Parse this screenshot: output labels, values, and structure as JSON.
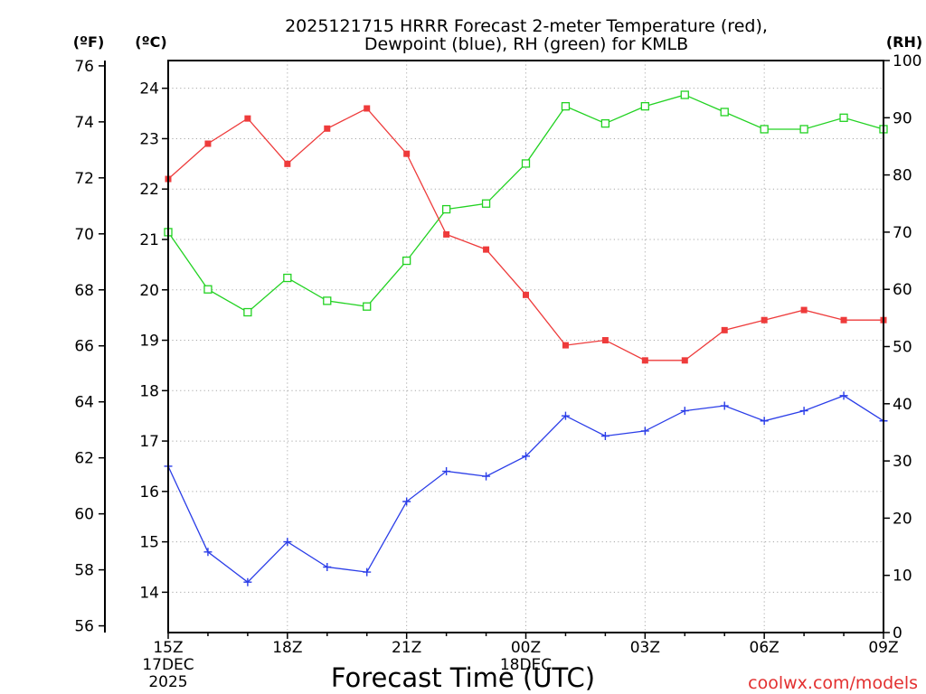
{
  "chart_data": {
    "type": "line",
    "title": [
      "2025121715 HRRR Forecast 2-meter Temperature (red),",
      "Dewpoint (blue), RH (green) for KMLB"
    ],
    "xlabel": "Forecast Time (UTC)",
    "x_hours_utc": [
      15,
      16,
      17,
      18,
      19,
      20,
      21,
      22,
      23,
      0,
      1,
      2,
      3,
      4,
      5,
      6,
      7,
      8,
      9
    ],
    "x_ticks": [
      {
        "label": "15Z",
        "date": "17DEC",
        "year": "2025"
      },
      {
        "label": "18Z"
      },
      {
        "label": "21Z"
      },
      {
        "label": "00Z",
        "date": "18DEC"
      },
      {
        "label": "03Z"
      },
      {
        "label": "06Z"
      },
      {
        "label": "09Z"
      }
    ],
    "y_axes": {
      "fahrenheit": {
        "label": "(ºF)",
        "ticks": [
          56,
          58,
          60,
          62,
          64,
          66,
          68,
          70,
          72,
          74,
          76
        ],
        "range": [
          55.76,
          76.19
        ]
      },
      "celsius": {
        "label": "(ºC)",
        "ticks": [
          14,
          15,
          16,
          17,
          18,
          19,
          20,
          21,
          22,
          23,
          24
        ],
        "range": [
          13.2,
          24.55
        ]
      },
      "rh": {
        "label": "(RH)",
        "ticks": [
          0,
          10,
          20,
          30,
          40,
          50,
          60,
          70,
          80,
          90,
          100
        ],
        "range": [
          0,
          100
        ]
      }
    },
    "grid": true,
    "temperature_c": [
      22.2,
      22.9,
      23.4,
      22.5,
      23.2,
      23.6,
      22.7,
      21.1,
      20.8,
      19.9,
      18.9,
      19.0,
      18.6,
      18.6,
      19.2,
      19.4,
      19.6,
      19.4,
      19.4
    ],
    "dewpoint_c": [
      16.5,
      14.8,
      14.2,
      15.0,
      14.5,
      14.4,
      15.8,
      16.4,
      16.3,
      16.7,
      17.5,
      17.1,
      17.2,
      17.6,
      17.7,
      17.4,
      17.6,
      17.9,
      17.4
    ],
    "rh_pct": [
      70,
      60,
      56,
      62,
      58,
      57,
      65,
      74,
      75,
      82,
      92,
      89,
      92,
      94,
      91,
      88,
      88,
      90,
      88
    ]
  },
  "credit": "coolwx.com/models",
  "colors": {
    "temperature": "#ee3b3b",
    "dewpoint": "#2a3de8",
    "rh": "#22d222",
    "grid": "#a8a8a8",
    "axis": "#000000",
    "credit": "#e33030"
  }
}
